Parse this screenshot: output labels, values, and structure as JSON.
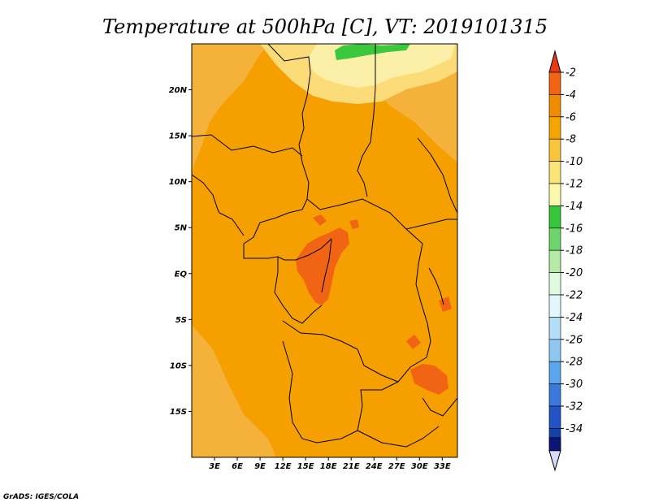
{
  "chart_data": {
    "type": "heatmap",
    "title": "Temperature at 500hPa [C], VT: 2019101315",
    "variable": "Temperature at 500hPa",
    "units": "C",
    "valid_time": "2019101315",
    "xaxis": {
      "range": [
        0,
        35
      ],
      "ticks": [
        3,
        6,
        9,
        12,
        15,
        18,
        21,
        24,
        27,
        30,
        33
      ],
      "tick_labels": [
        "3E",
        "6E",
        "9E",
        "12E",
        "15E",
        "18E",
        "21E",
        "24E",
        "27E",
        "30E",
        "33E"
      ]
    },
    "yaxis": {
      "range": [
        -20,
        25
      ],
      "ticks": [
        20,
        15,
        10,
        5,
        0,
        -5,
        -10,
        -15
      ],
      "tick_labels": [
        "20N",
        "15N",
        "10N",
        "5N",
        "EQ",
        "5S",
        "10S",
        "15S"
      ]
    },
    "colorbar": {
      "levels": [
        -2,
        -4,
        -6,
        -8,
        -10,
        -12,
        -14,
        -16,
        -18,
        -20,
        -22,
        -24,
        -26,
        -28,
        -30,
        -32,
        -34
      ],
      "labels": [
        "-2",
        "-4",
        "-6",
        "-8",
        "-10",
        "-12",
        "-14",
        "-16",
        "-18",
        "-20",
        "-22",
        "-24",
        "-26",
        "-28",
        "-30",
        "-32",
        "-34"
      ],
      "colors": [
        "#f06414",
        "#f08c00",
        "#f5a500",
        "#fac43c",
        "#fae378",
        "#fcf8ac",
        "#36c83a",
        "#6ed56a",
        "#b2eaa6",
        "#e0fae0",
        "#e3f6fc",
        "#b4def8",
        "#8ec8f0",
        "#5aa6f0",
        "#3a78dc",
        "#2354c5",
        "#1442a8"
      ],
      "top_triangle_color": "#e63a14",
      "bottom_triangle_color": "#d8dcf8",
      "bottom_cell_color": "#0c1478"
    },
    "field": {
      "background_color": "#f5a000",
      "regions": [
        {
          "name": "west-lighter-band",
          "value": -7,
          "color": "#f5b23a"
        },
        {
          "name": "northeast-lighter-band",
          "value": -7,
          "color": "#f5b23a"
        },
        {
          "name": "sahara-light-zone",
          "value": -9,
          "color": "#fbdc78"
        },
        {
          "name": "sahara-pale-zone",
          "value": -10,
          "color": "#fcf0a8"
        },
        {
          "name": "sahara-green-patch",
          "value": -13,
          "color": "#3cc83c"
        },
        {
          "name": "congo-warm-core",
          "value": -3,
          "color": "#f06414"
        },
        {
          "name": "zambia-warm-patch",
          "value": -3,
          "color": "#f06414"
        }
      ]
    }
  },
  "footer": {
    "credit": "GrADS: IGES/COLA"
  }
}
